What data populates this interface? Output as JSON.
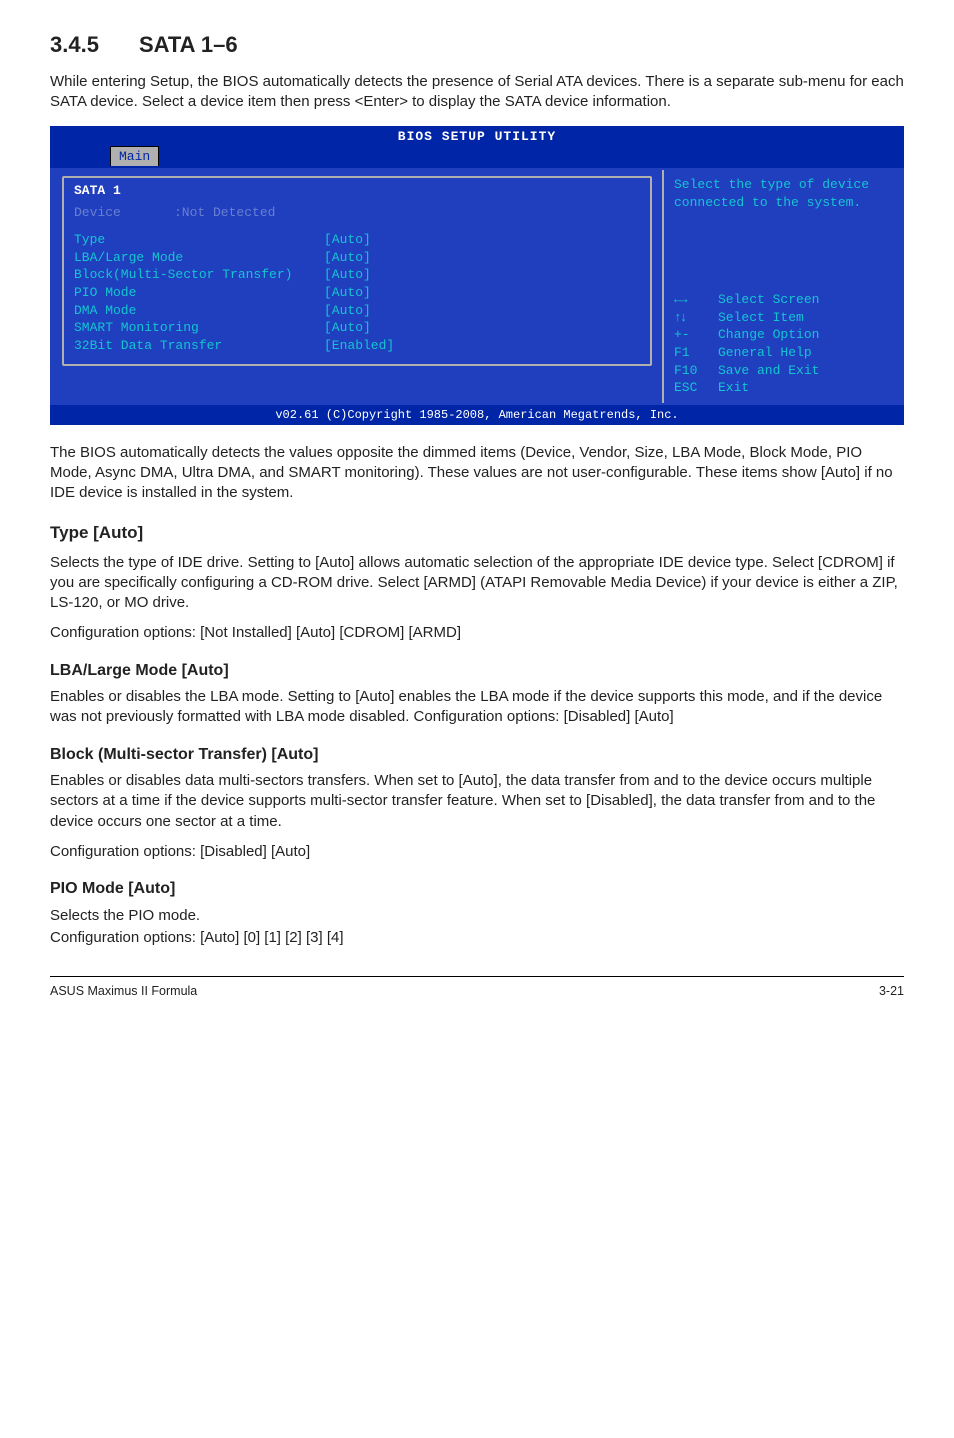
{
  "section": {
    "number": "3.4.5",
    "title": "SATA 1–6"
  },
  "intro": "While entering Setup, the BIOS automatically detects the presence of Serial ATA devices. There is a separate sub-menu for each SATA device. Select a device item then press <Enter> to display the SATA device information.",
  "bios": {
    "title": "BIOS SETUP UTILITY",
    "active_tab": "Main",
    "panel_title": "SATA 1",
    "device_label": "Device",
    "device_value": ":Not Detected",
    "items": [
      {
        "label": "Type",
        "value": "[Auto]",
        "label_w": 250
      },
      {
        "label": "LBA/Large Mode",
        "value": "[Auto]",
        "label_w": 250
      },
      {
        "label": "Block(Multi-Sector Transfer)",
        "value": "[Auto]",
        "label_w": 250
      },
      {
        "label": "PIO Mode",
        "value": "[Auto]",
        "label_w": 250
      },
      {
        "label": "DMA Mode",
        "value": "[Auto]",
        "label_w": 250
      },
      {
        "label": "SMART Monitoring",
        "value": "[Auto]",
        "label_w": 250
      },
      {
        "label": "32Bit Data Transfer",
        "value": "[Enabled]",
        "label_w": 250
      }
    ],
    "help_text": "Select the type of device connected to the system.",
    "nav": [
      {
        "key_icon": "arrow-h",
        "text": "Select Screen"
      },
      {
        "key_icon": "arrow-v",
        "text": "Select Item"
      },
      {
        "key": "+-",
        "text": "Change Option"
      },
      {
        "key": "F1",
        "text": "General Help"
      },
      {
        "key": "F10",
        "text": "Save and Exit"
      },
      {
        "key": "ESC",
        "text": "Exit"
      }
    ],
    "footer": "v02.61 (C)Copyright 1985-2008, American Megatrends, Inc.",
    "colors": {
      "header_bg": "#0025a6",
      "body_bg": "#1f3fbf",
      "text": "#16c4cf",
      "dim": "#6a7fd0",
      "border": "#b0b0b0",
      "white": "#ffffff"
    }
  },
  "after_bios": "The BIOS automatically detects the values opposite the dimmed items (Device, Vendor, Size, LBA Mode, Block Mode, PIO Mode, Async DMA, Ultra DMA, and SMART monitoring). These values are not user-configurable. These items show [Auto] if no IDE device is installed in the system.",
  "type": {
    "heading": "Type [Auto]",
    "body": "Selects the type of IDE drive. Setting to [Auto] allows automatic selection of the appropriate IDE device type. Select [CDROM] if you are specifically configuring a CD-ROM drive. Select [ARMD] (ATAPI Removable Media Device) if your device is either a ZIP, LS-120, or MO drive.",
    "options": "Configuration options: [Not Installed] [Auto] [CDROM] [ARMD]"
  },
  "lba": {
    "heading": "LBA/Large Mode [Auto]",
    "body": "Enables or disables the LBA mode. Setting to [Auto] enables the LBA mode if the device supports this mode, and if the device was not previously formatted with LBA mode disabled. Configuration options: [Disabled] [Auto]"
  },
  "block": {
    "heading": "Block (Multi-sector Transfer) [Auto]",
    "body": "Enables or disables data multi-sectors transfers. When set to [Auto], the data transfer from and to the device occurs multiple sectors at a time if the device supports multi-sector transfer feature. When set to [Disabled], the data transfer from and to the device occurs one sector at a time.",
    "options": "Configuration options: [Disabled] [Auto]"
  },
  "pio": {
    "heading": "PIO Mode [Auto]",
    "body": "Selects the PIO mode.",
    "options": "Configuration options: [Auto] [0] [1] [2] [3] [4]"
  },
  "footer": {
    "left": "ASUS Maximus II Formula",
    "right": "3-21"
  }
}
